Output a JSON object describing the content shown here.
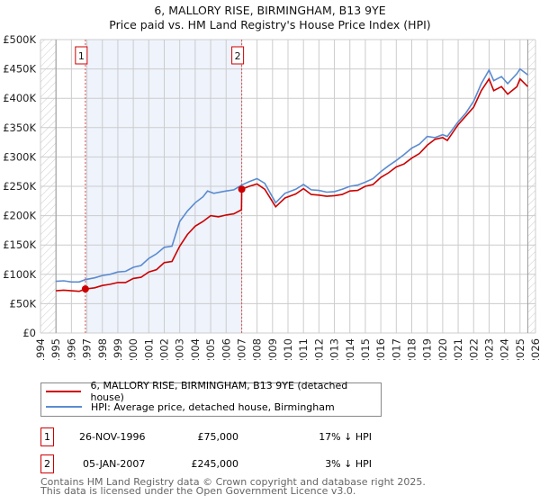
{
  "title_line1": "6, MALLORY RISE, BIRMINGHAM, B13 9YE",
  "title_line2": "Price paid vs. HM Land Registry's House Price Index (HPI)",
  "colors": {
    "property": "#cc0000",
    "hpi": "#5b8bd0",
    "shade": "#eef3fc",
    "grid": "#cccccc"
  },
  "chart_data": {
    "type": "line",
    "title": "6, MALLORY RISE, BIRMINGHAM, B13 9YE — Price paid vs. HM Land Registry's House Price Index (HPI)",
    "xlabel": "",
    "ylabel": "",
    "xlim": [
      1994,
      2026
    ],
    "ylim": [
      0,
      500000
    ],
    "grid": true,
    "x_ticks": [
      "1994",
      "1995",
      "1996",
      "1997",
      "1998",
      "1999",
      "2000",
      "2001",
      "2002",
      "2003",
      "2004",
      "2005",
      "2006",
      "2007",
      "2008",
      "2009",
      "2010",
      "2011",
      "2012",
      "2013",
      "2014",
      "2015",
      "2016",
      "2017",
      "2018",
      "2019",
      "2020",
      "2021",
      "2022",
      "2023",
      "2024",
      "2025",
      "2026"
    ],
    "y_ticks": [
      {
        "value": 0,
        "label": "£0"
      },
      {
        "value": 50000,
        "label": "£50K"
      },
      {
        "value": 100000,
        "label": "£100K"
      },
      {
        "value": 150000,
        "label": "£150K"
      },
      {
        "value": 200000,
        "label": "£200K"
      },
      {
        "value": 250000,
        "label": "£250K"
      },
      {
        "value": 300000,
        "label": "£300K"
      },
      {
        "value": 350000,
        "label": "£350K"
      },
      {
        "value": 400000,
        "label": "£400K"
      },
      {
        "value": 450000,
        "label": "£450K"
      },
      {
        "value": 500000,
        "label": "£500K"
      }
    ],
    "data_range": [
      1995,
      2025.5
    ],
    "series": [
      {
        "name": "6, MALLORY RISE, BIRMINGHAM, B13 9YE (detached house)",
        "color": "#cc0000",
        "x": [
          1995,
          1995.5,
          1996,
          1996.5,
          1996.9,
          1997.5,
          1998,
          1998.5,
          1999,
          1999.5,
          2000,
          2000.5,
          2001,
          2001.5,
          2002,
          2002.5,
          2003,
          2003.5,
          2004,
          2004.5,
          2005,
          2005.5,
          2006,
          2006.5,
          2006.99,
          2007.01,
          2007.5,
          2008,
          2008.5,
          2009.2,
          2009.8,
          2010.5,
          2011,
          2011.5,
          2012,
          2012.5,
          2013,
          2013.5,
          2014,
          2014.5,
          2015,
          2015.5,
          2016,
          2016.5,
          2017,
          2017.5,
          2018,
          2018.5,
          2019,
          2019.5,
          2020,
          2020.3,
          2021,
          2021.5,
          2022,
          2022.5,
          2023,
          2023.3,
          2023.8,
          2024.2,
          2024.8,
          2025,
          2025.5
        ],
        "y": [
          72000,
          73000,
          72000,
          71000,
          75000,
          77000,
          81000,
          83000,
          86000,
          86000,
          93000,
          95000,
          104000,
          108000,
          120000,
          122000,
          148000,
          168000,
          182000,
          190000,
          200000,
          198000,
          201000,
          203000,
          210000,
          245000,
          250000,
          254000,
          245000,
          215000,
          230000,
          237000,
          246000,
          236000,
          235000,
          233000,
          234000,
          236000,
          242000,
          243000,
          250000,
          253000,
          265000,
          273000,
          283000,
          288000,
          298000,
          306000,
          320000,
          330000,
          333000,
          328000,
          355000,
          370000,
          385000,
          413000,
          433000,
          413000,
          420000,
          407000,
          420000,
          433000,
          420000
        ]
      },
      {
        "name": "HPI: Average price, detached house, Birmingham",
        "color": "#5b8bd0",
        "x": [
          1995,
          1995.5,
          1996,
          1996.5,
          1996.9,
          1997.5,
          1998,
          1998.5,
          1999,
          1999.5,
          2000,
          2000.5,
          2001,
          2001.5,
          2002,
          2002.5,
          2003,
          2003.5,
          2004,
          2004.5,
          2004.8,
          2005.2,
          2006,
          2006.5,
          2007,
          2007.5,
          2008,
          2008.5,
          2009.2,
          2009.8,
          2010.5,
          2011,
          2011.5,
          2012,
          2012.5,
          2013,
          2013.5,
          2014,
          2014.5,
          2015,
          2015.5,
          2016,
          2016.5,
          2017,
          2017.5,
          2018,
          2018.5,
          2019,
          2019.5,
          2020,
          2020.3,
          2021,
          2021.5,
          2022,
          2022.5,
          2023,
          2023.3,
          2023.8,
          2024.2,
          2024.8,
          2025,
          2025.5
        ],
        "y": [
          88000,
          89000,
          87000,
          87000,
          91000,
          94000,
          98000,
          100000,
          104000,
          105000,
          112000,
          115000,
          127000,
          135000,
          146000,
          148000,
          190000,
          208000,
          222000,
          232000,
          242000,
          238000,
          242000,
          244000,
          252000,
          258000,
          263000,
          255000,
          222000,
          238000,
          245000,
          253000,
          244000,
          243000,
          240000,
          241000,
          245000,
          250000,
          252000,
          257000,
          263000,
          275000,
          285000,
          294000,
          304000,
          315000,
          322000,
          335000,
          333000,
          338000,
          335000,
          360000,
          375000,
          395000,
          425000,
          448000,
          430000,
          437000,
          425000,
          442000,
          450000,
          440000
        ]
      }
    ],
    "annotations": [
      {
        "label": "1",
        "x": 1996.9,
        "y": 75000
      },
      {
        "label": "2",
        "x": 2007.01,
        "y": 245000
      }
    ]
  },
  "legend": {
    "property": "6, MALLORY RISE, BIRMINGHAM, B13 9YE (detached house)",
    "hpi": "HPI: Average price, detached house, Birmingham"
  },
  "transactions": [
    {
      "num": "1",
      "date": "26-NOV-1996",
      "price": "£75,000",
      "hpi": "17% ↓ HPI"
    },
    {
      "num": "2",
      "date": "05-JAN-2007",
      "price": "£245,000",
      "hpi": "3% ↓ HPI"
    }
  ],
  "footer_line1": "Contains HM Land Registry data © Crown copyright and database right 2025.",
  "footer_line2": "This data is licensed under the Open Government Licence v3.0."
}
